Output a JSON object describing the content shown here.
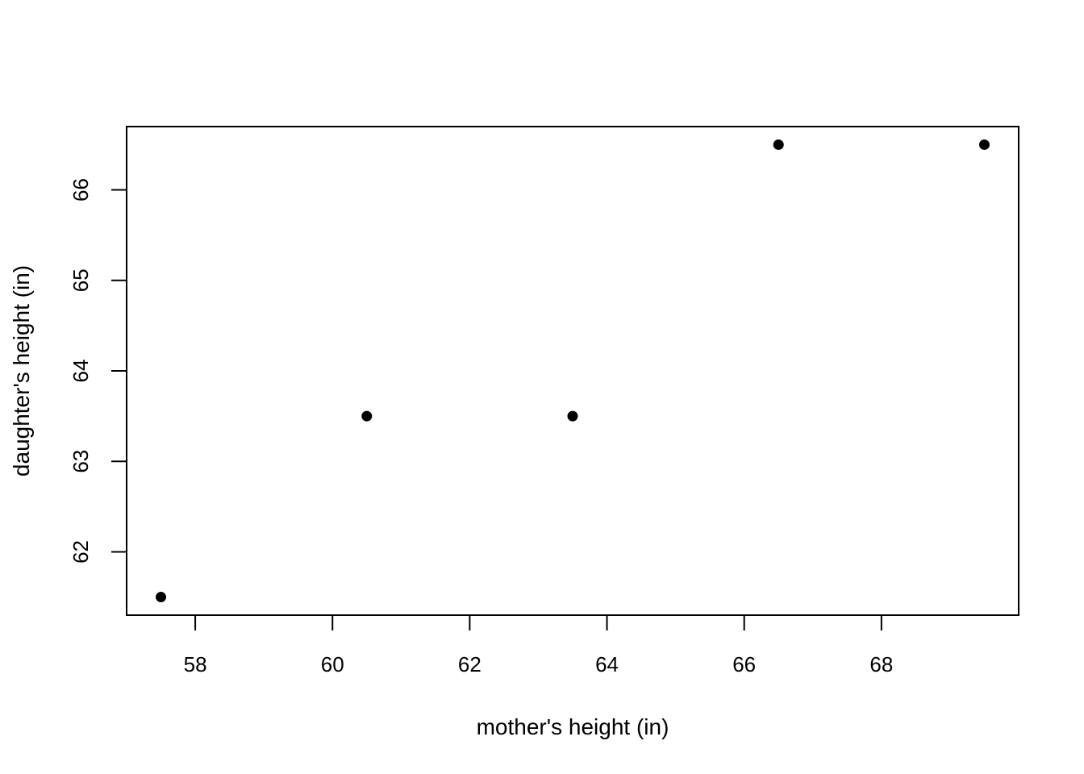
{
  "chart_data": {
    "type": "scatter",
    "title": "",
    "xlabel": "mother's height (in)",
    "ylabel": "daughter's height (in)",
    "xlim": [
      57.0,
      70.0
    ],
    "ylim": [
      61.3,
      66.7
    ],
    "x_ticks": [
      58,
      60,
      62,
      64,
      66,
      68
    ],
    "y_ticks": [
      62,
      63,
      64,
      65,
      66
    ],
    "grid": false,
    "legend": "none",
    "point_color": "#000000",
    "points": [
      {
        "x": 57.5,
        "y": 61.5
      },
      {
        "x": 60.5,
        "y": 63.5
      },
      {
        "x": 63.5,
        "y": 63.5
      },
      {
        "x": 66.5,
        "y": 66.5
      },
      {
        "x": 69.5,
        "y": 66.5
      }
    ]
  }
}
